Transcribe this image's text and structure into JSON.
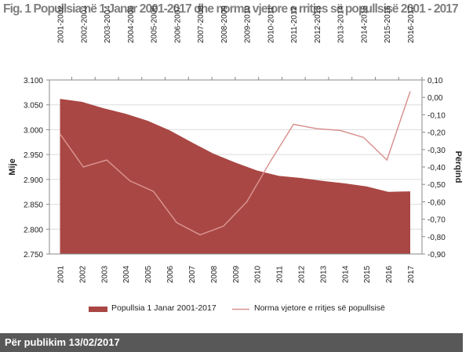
{
  "title": "Fig. 1 Popullsia në 1 Janar 2001-2017 dhe norma vjetore e rritjes së popullsisë 2001 - 2017",
  "footer": "Për publikim 13/02/2017",
  "chart_data": {
    "type": "area+line",
    "title": "Fig. 1 Popullsia në 1 Janar 2001-2017 dhe norma vjetore e rritjes së popullsisë 2001 - 2017",
    "ylabel": "Mije",
    "y2label": "Përqind",
    "ylim": [
      2.75,
      3.1
    ],
    "y2lim": [
      -0.9,
      0.1
    ],
    "yticks": [
      "3.100",
      "3.050",
      "3.000",
      "2.950",
      "2.900",
      "2.850",
      "2.800",
      "2.750"
    ],
    "y2ticks": [
      "0,10",
      "0,00",
      "-0,10",
      "-0,20",
      "-0,30",
      "-0,40",
      "-0,50",
      "-0,60",
      "-0,70",
      "-0,80",
      "-0,90"
    ],
    "grid": true,
    "legend_position": "bottom",
    "colors": {
      "area": "#a94744",
      "line": "#d99390"
    },
    "area_series": {
      "name": "Popullsia 1 Janar 2001-2017",
      "categories": [
        "2001",
        "2002",
        "2003",
        "2004",
        "2005",
        "2006",
        "2007",
        "2008",
        "2009",
        "2010",
        "2011",
        "2012",
        "2013",
        "2014",
        "2015",
        "2016",
        "2017"
      ],
      "values": [
        3.062,
        3.056,
        3.043,
        3.032,
        3.018,
        2.999,
        2.975,
        2.952,
        2.934,
        2.918,
        2.907,
        2.903,
        2.897,
        2.892,
        2.886,
        2.875,
        2.876
      ]
    },
    "line_series": {
      "name": "Norma vjetore e rritjes së popullsisë",
      "categories": [
        "2001-2002",
        "2002-2003",
        "2003-2004",
        "2004-2005",
        "2005-2006",
        "2006-2007",
        "2007-2008",
        "2008-2009",
        "2009-2010",
        "2010-2011",
        "2011-2012",
        "2012-2013",
        "2013-2014",
        "2014-2015",
        "2015-2016",
        "2016-2017"
      ],
      "values": [
        -0.21,
        -0.4,
        -0.36,
        -0.48,
        -0.54,
        -0.72,
        -0.79,
        -0.74,
        -0.6,
        -0.37,
        -0.155,
        -0.18,
        -0.19,
        -0.23,
        -0.36,
        0.035
      ]
    }
  }
}
